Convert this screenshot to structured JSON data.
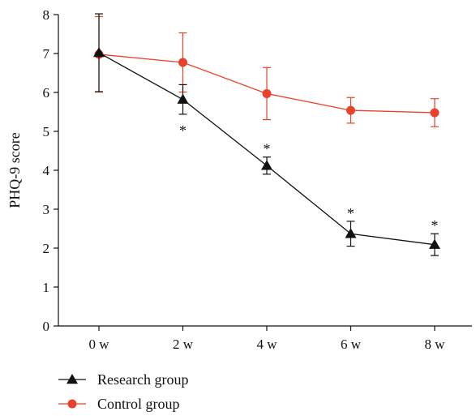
{
  "chart_data": {
    "type": "line",
    "categories": [
      "0 w",
      "2 w",
      "4 w",
      "6 w",
      "8 w"
    ],
    "xlabel": "",
    "ylabel": "PHQ-9 score",
    "ylim": [
      0,
      8
    ],
    "yticks": [
      "0",
      "1",
      "2",
      "3",
      "4",
      "5",
      "6",
      "7",
      "8"
    ],
    "grid": false,
    "legend_position": "bottom-left",
    "significance_marker": "*",
    "series": [
      {
        "name": "Research group",
        "marker": "triangle",
        "color": "#111111",
        "values": [
          7.02,
          5.82,
          4.12,
          2.37,
          2.09
        ],
        "error": [
          1.0,
          0.38,
          0.22,
          0.32,
          0.28
        ],
        "significant": [
          false,
          true,
          true,
          true,
          true
        ]
      },
      {
        "name": "Control group",
        "marker": "circle",
        "color": "#e8412c",
        "values": [
          6.98,
          6.77,
          5.97,
          5.54,
          5.48
        ],
        "error": [
          0.97,
          0.76,
          0.67,
          0.33,
          0.36
        ],
        "significant": [
          false,
          false,
          false,
          false,
          false
        ]
      }
    ]
  }
}
